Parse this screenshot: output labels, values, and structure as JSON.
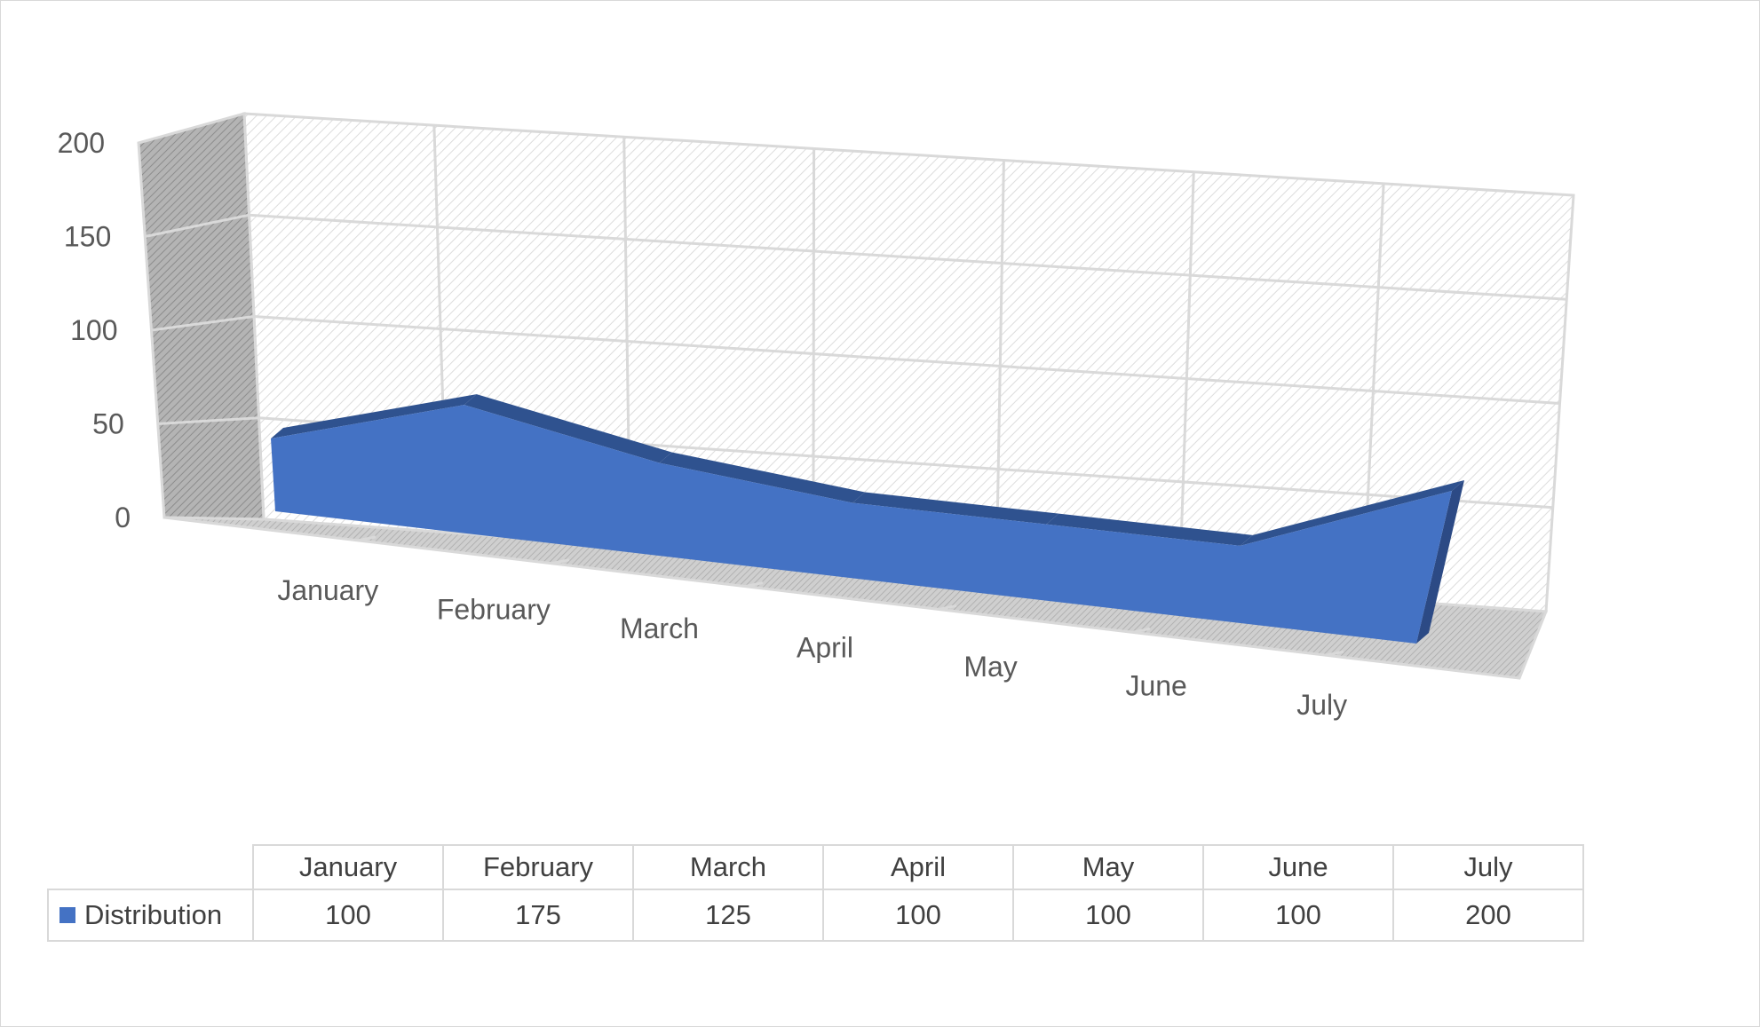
{
  "chart_data": {
    "type": "area",
    "view": "3d",
    "title": "",
    "xlabel": "",
    "ylabel": "",
    "categories": [
      "January",
      "February",
      "March",
      "April",
      "May",
      "June",
      "July"
    ],
    "series": [
      {
        "name": "Distribution",
        "values": [
          100,
          175,
          125,
          100,
          100,
          100,
          200
        ],
        "color": "#4472c4"
      }
    ],
    "ylim": [
      0,
      200
    ],
    "yticks": [
      "0",
      "50",
      "100",
      "150",
      "200"
    ],
    "grid": true,
    "legend": "data-table"
  }
}
